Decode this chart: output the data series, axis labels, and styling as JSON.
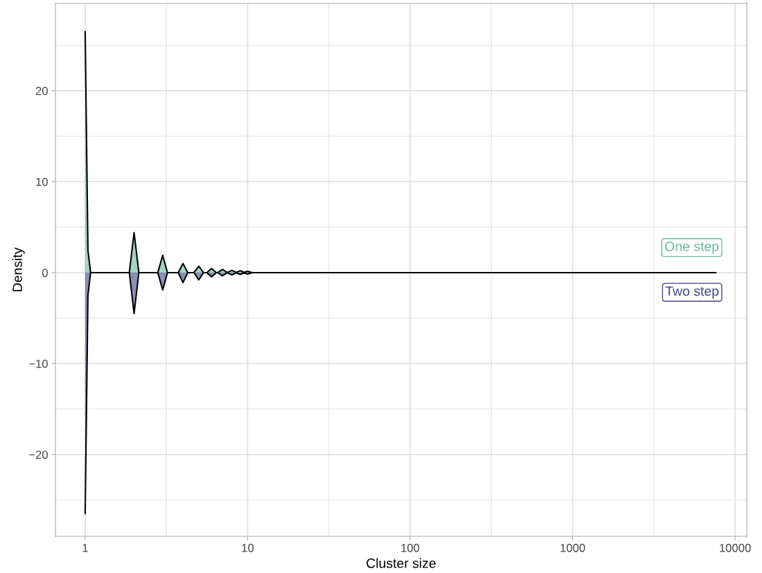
{
  "chart_data": {
    "type": "area",
    "xlabel": "Cluster size",
    "ylabel": "Density",
    "log": "x",
    "grid": true,
    "legend": false,
    "xlim": [
      0.656,
      11800
    ],
    "ylim": [
      -29,
      29.6
    ],
    "xticks": [
      1,
      10,
      100,
      1000,
      10000
    ],
    "yticks": [
      {
        "value": -20,
        "label": "−20"
      },
      {
        "value": -10,
        "label": "−10"
      },
      0,
      10,
      20
    ],
    "x": [
      1,
      1.04,
      1.08,
      1.87,
      2,
      2.14,
      2.8,
      3,
      3.21,
      3.74,
      4,
      4.28,
      4.67,
      5,
      5.35,
      5.61,
      6,
      6.42,
      6.54,
      7,
      7.49,
      7.48,
      8,
      8.56,
      8.41,
      9,
      9.63,
      9.35,
      10,
      10.7,
      7600
    ],
    "series": [
      {
        "name": "One step",
        "color": "#66b89c",
        "values": [
          26.5,
          2.5,
          0,
          0,
          4.4,
          0,
          0,
          1.9,
          0,
          0,
          1.0,
          0,
          0,
          0.7,
          0,
          0,
          0.45,
          0,
          0,
          0.35,
          0,
          0,
          0.25,
          0,
          0,
          0.2,
          0,
          0,
          0.15,
          0,
          0
        ]
      },
      {
        "name": "Two step",
        "color": "#45428a",
        "values": [
          -26.5,
          -2.5,
          0,
          0,
          -4.5,
          0,
          0,
          -1.9,
          0,
          0,
          -1.1,
          0,
          0,
          -0.8,
          0,
          0,
          -0.45,
          0,
          0,
          -0.35,
          0,
          0,
          -0.25,
          0,
          0,
          -0.2,
          0,
          0,
          -0.15,
          0,
          0
        ]
      }
    ]
  }
}
